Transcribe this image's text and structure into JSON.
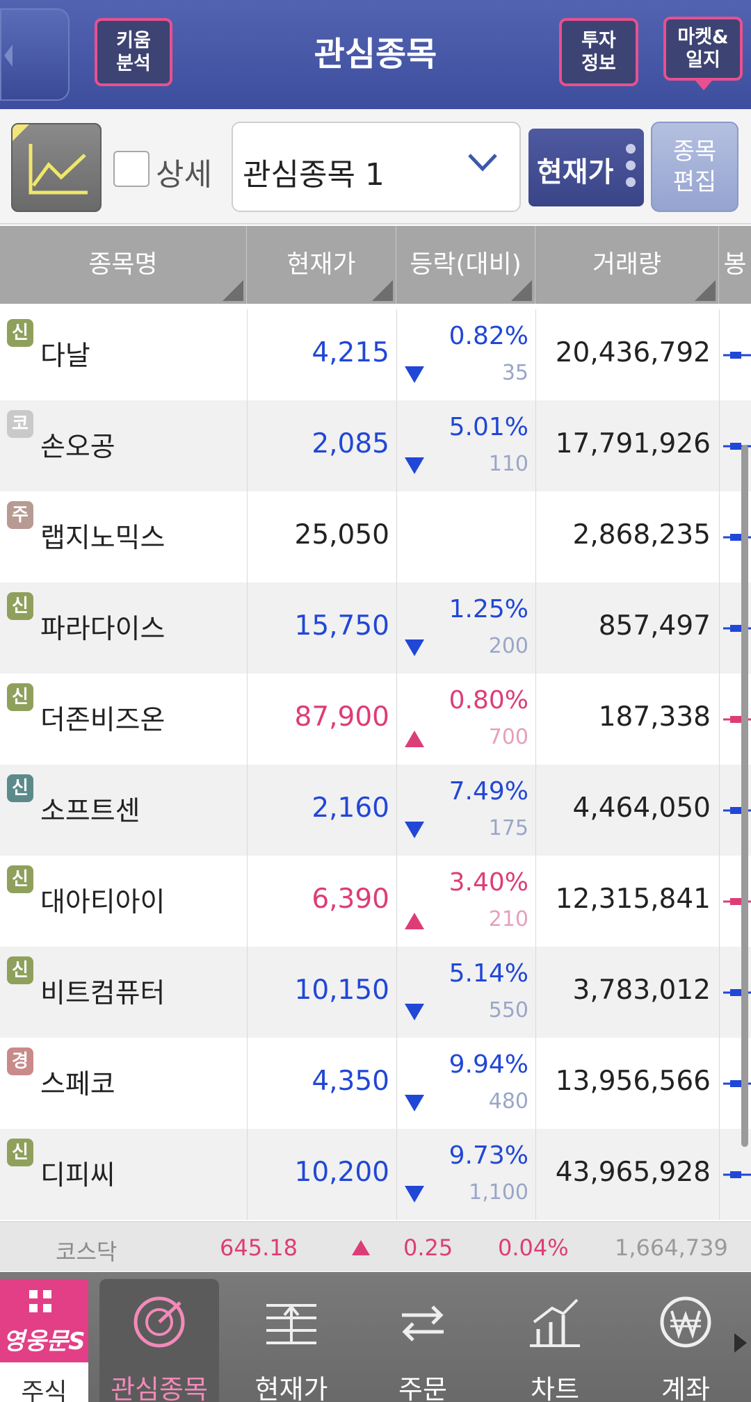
{
  "header": {
    "title": "관심종목",
    "kiwoom_analysis": "키움\n분석",
    "invest_info": "투자\n정보",
    "market_journal": "마켓&\n일지"
  },
  "toolbar": {
    "detail_label": "상세",
    "detail_checked": false,
    "group_value": "관심종목 1",
    "price_toggle": "현재가",
    "edit_button": "종목\n편집"
  },
  "columns": [
    "종목명",
    "현재가",
    "등락(대비)",
    "거래량",
    "봉"
  ],
  "colors": {
    "up": "#dd3d77",
    "down": "#2147d6",
    "flat": "#222222",
    "header_bg": "#4a5aa8",
    "accent_pink": "#e8508f"
  },
  "rows": [
    {
      "badge": "신",
      "badge_color": "#8fa05c",
      "name": "다날",
      "price": "4,215",
      "pct": "0.82%",
      "diff": "35",
      "dir": "down",
      "volume": "20,436,792"
    },
    {
      "badge": "코",
      "badge_color": "#c9c9c9",
      "name": "손오공",
      "price": "2,085",
      "pct": "5.01%",
      "diff": "110",
      "dir": "down",
      "volume": "17,791,926"
    },
    {
      "badge": "주",
      "badge_color": "#b79b92",
      "name": "랩지노믹스",
      "price": "25,050",
      "pct": "",
      "diff": "",
      "dir": "flat",
      "volume": "2,868,235"
    },
    {
      "badge": "신",
      "badge_color": "#8fa05c",
      "name": "파라다이스",
      "price": "15,750",
      "pct": "1.25%",
      "diff": "200",
      "dir": "down",
      "volume": "857,497"
    },
    {
      "badge": "신",
      "badge_color": "#8fa05c",
      "name": "더존비즈온",
      "price": "87,900",
      "pct": "0.80%",
      "diff": "700",
      "dir": "up",
      "volume": "187,338"
    },
    {
      "badge": "신",
      "badge_color": "#5c8a8a",
      "name": "소프트센",
      "price": "2,160",
      "pct": "7.49%",
      "diff": "175",
      "dir": "down",
      "volume": "4,464,050"
    },
    {
      "badge": "신",
      "badge_color": "#8fa05c",
      "name": "대아티아이",
      "price": "6,390",
      "pct": "3.40%",
      "diff": "210",
      "dir": "up",
      "volume": "12,315,841"
    },
    {
      "badge": "신",
      "badge_color": "#8fa05c",
      "name": "비트컴퓨터",
      "price": "10,150",
      "pct": "5.14%",
      "diff": "550",
      "dir": "down",
      "volume": "3,783,012"
    },
    {
      "badge": "경",
      "badge_color": "#c98a8a",
      "name": "스페코",
      "price": "4,350",
      "pct": "9.94%",
      "diff": "480",
      "dir": "down",
      "volume": "13,956,566"
    },
    {
      "badge": "신",
      "badge_color": "#8fa05c",
      "name": "디피씨",
      "price": "10,200",
      "pct": "9.73%",
      "diff": "1,100",
      "dir": "down",
      "volume": "43,965,928"
    }
  ],
  "index_bar": {
    "name": "코스닥",
    "value": "645.18",
    "change": "0.25",
    "pct": "0.04%",
    "volume": "1,664,739"
  },
  "bottom_nav": {
    "brand_logo": "영웅문S",
    "brand_label": "주식",
    "items": [
      {
        "label": "관심종목",
        "icon": "watchlist-icon",
        "active": true
      },
      {
        "label": "현재가",
        "icon": "current-price-icon",
        "active": false
      },
      {
        "label": "주문",
        "icon": "order-icon",
        "active": false
      },
      {
        "label": "차트",
        "icon": "chart-icon",
        "active": false
      },
      {
        "label": "계좌",
        "icon": "account-won-icon",
        "active": false
      }
    ]
  }
}
